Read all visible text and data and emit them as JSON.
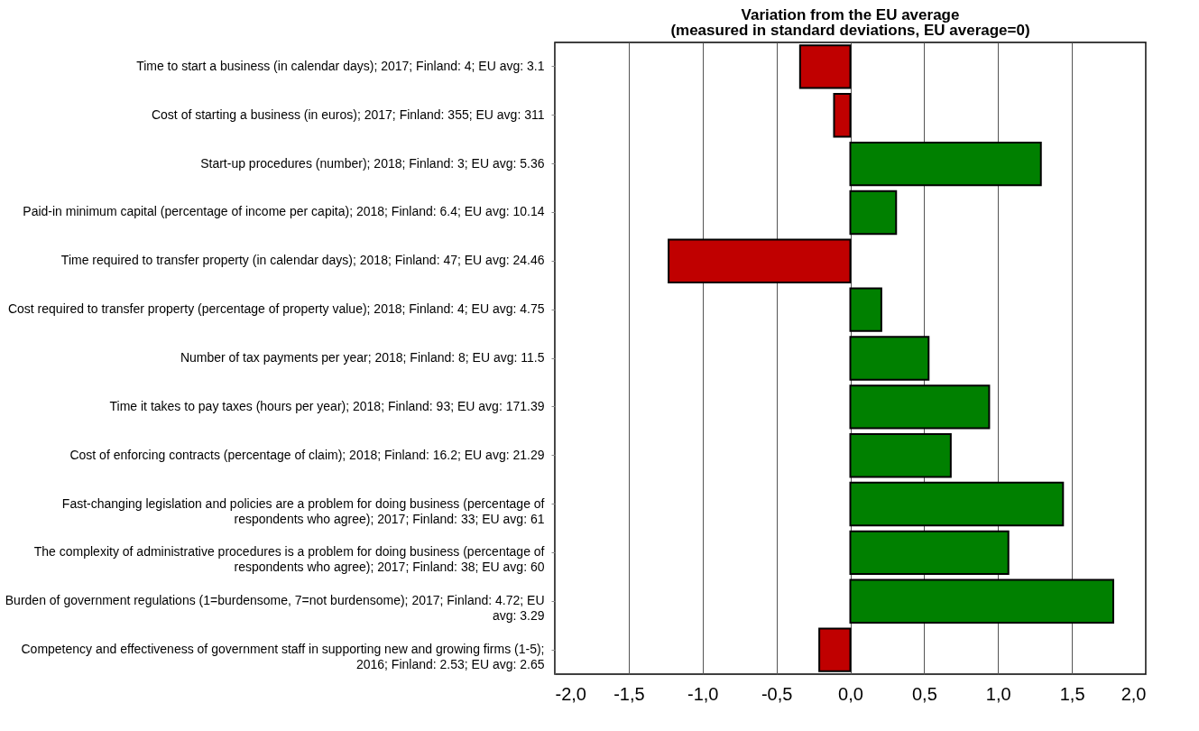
{
  "chart_data": {
    "type": "bar",
    "orientation": "horizontal",
    "title": "Variation from the EU average",
    "subtitle": "(measured in standard deviations, EU average=0)",
    "categories": [
      "Time to start a business (in calendar days); 2017; Finland: 4; EU avg: 3.1",
      "Cost of starting a business (in euros); 2017; Finland: 355; EU avg: 311",
      "Start-up procedures (number); 2018; Finland: 3; EU avg: 5.36",
      "Paid-in minimum capital (percentage of income per capita); 2018; Finland: 6.4; EU avg: 10.14",
      "Time required to transfer property (in calendar days); 2018; Finland: 47; EU avg: 24.46",
      "Cost required to transfer property (percentage of property value); 2018; Finland: 4; EU avg: 4.75",
      "Number of tax payments per year; 2018; Finland: 8; EU avg: 11.5",
      "Time it takes to pay taxes (hours per year); 2018; Finland: 93; EU avg: 171.39",
      "Cost of enforcing contracts (percentage of claim); 2018; Finland: 16.2; EU avg: 21.29",
      "Fast-changing legislation and policies are a problem for doing business (percentage of respondents who agree); 2017; Finland: 33; EU avg: 61",
      "The complexity of administrative procedures is a problem for doing business (percentage of respondents who agree); 2017; Finland: 38; EU avg: 60",
      "Burden of government regulations (1=burdensome, 7=not burdensome); 2017; Finland: 4.72; EU avg: 3.29",
      "Competency and effectiveness of government staff in supporting new and growing firms (1-5); 2016; Finland: 2.53; EU avg: 2.65"
    ],
    "values": [
      -0.34,
      -0.11,
      1.29,
      0.31,
      -1.23,
      0.21,
      0.53,
      0.94,
      0.68,
      1.44,
      1.07,
      1.78,
      -0.21
    ],
    "colors": [
      "#c00000",
      "#c00000",
      "#008000",
      "#008000",
      "#c00000",
      "#008000",
      "#008000",
      "#008000",
      "#008000",
      "#008000",
      "#008000",
      "#008000",
      "#c00000"
    ],
    "xlim": [
      -2,
      2
    ],
    "xticks": [
      {
        "value": -2,
        "label": "-2,0"
      },
      {
        "value": -1.5,
        "label": "-1,5"
      },
      {
        "value": -1,
        "label": "-1,0"
      },
      {
        "value": -0.5,
        "label": "-0,5"
      },
      {
        "value": 0,
        "label": "0,0"
      },
      {
        "value": 0.5,
        "label": "0,5"
      },
      {
        "value": 1,
        "label": "1,0"
      },
      {
        "value": 1.5,
        "label": "1,5"
      },
      {
        "value": 2,
        "label": "2,0"
      }
    ],
    "grid": "x"
  }
}
